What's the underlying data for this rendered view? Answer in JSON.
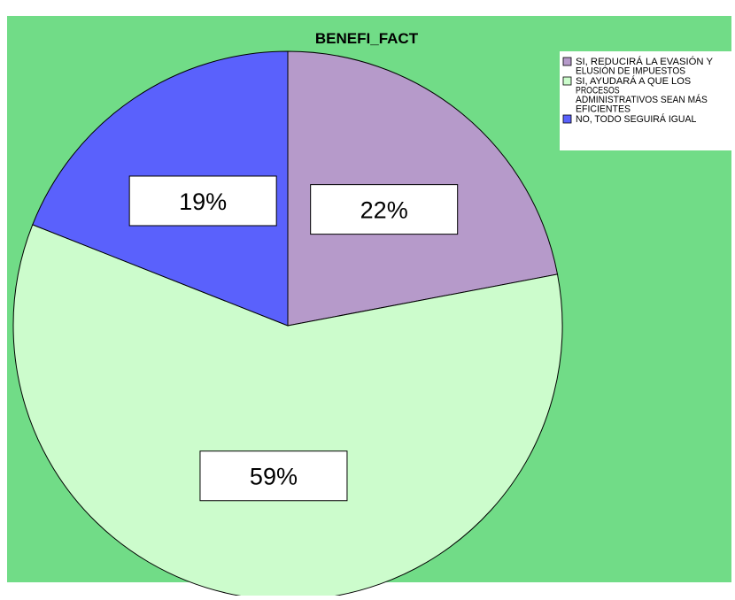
{
  "chart_data": {
    "type": "pie",
    "title": "BENEFI_FACT",
    "background_color": "#71dc87",
    "slices": [
      {
        "label_lines": [
          "SI, REDUCIRÁ LA EVASIÓN Y",
          "ELUSIÓN DE IMPUESTOS"
        ],
        "value": 22,
        "value_label": "22%",
        "color": "#b69aca"
      },
      {
        "label_lines": [
          "SI, AYUDARÁ A QUE LOS",
          "PROCESOS",
          "ADMINISTRATIVOS SEAN MÁS",
          "EFICIENTES"
        ],
        "value": 59,
        "value_label": "59%",
        "color": "#ccfccc"
      },
      {
        "label_lines": [
          "NO, TODO SEGUIRÁ IGUAL"
        ],
        "value": 19,
        "value_label": "19%",
        "color": "#5a61fc"
      }
    ],
    "legend_position": "top-right"
  }
}
